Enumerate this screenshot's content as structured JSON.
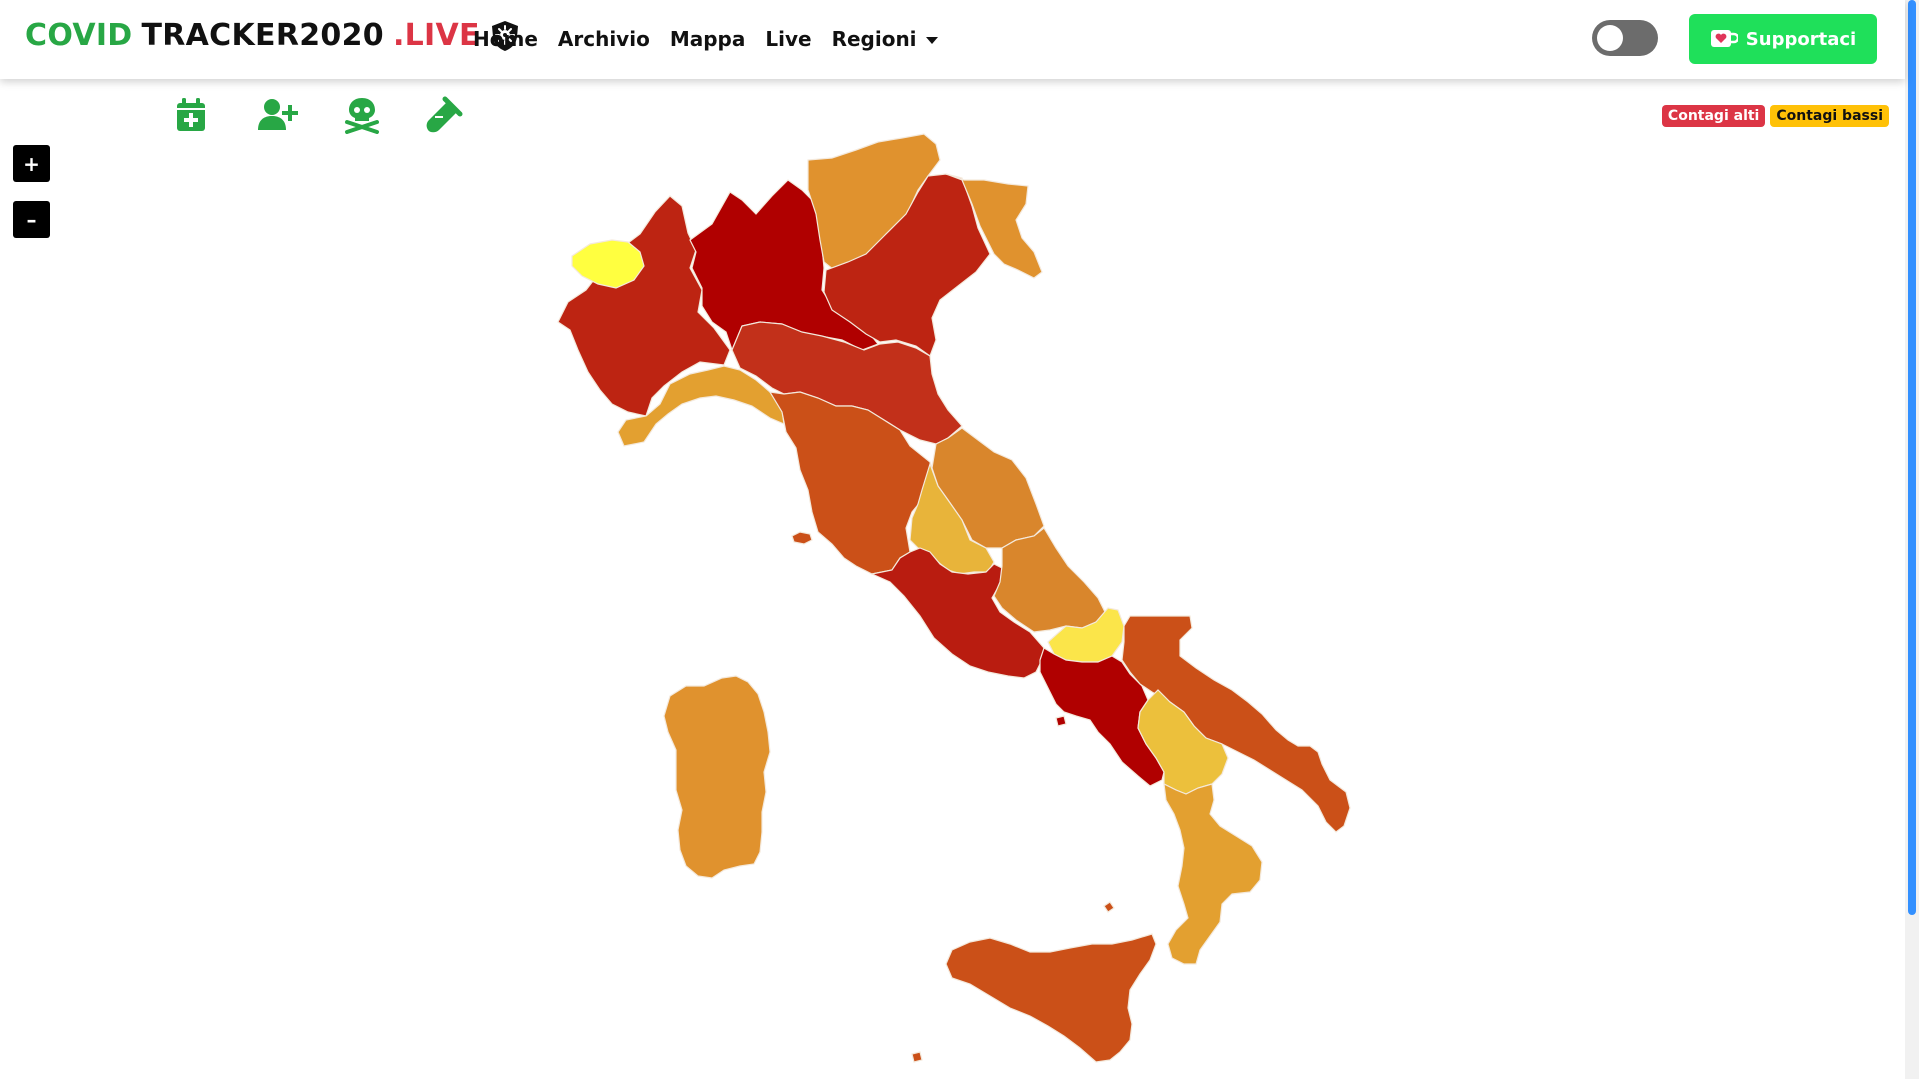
{
  "brand": {
    "part1": "COVID",
    "part2": "TRACKER2020",
    "part3": ".LIVE",
    "logo_icon": "shield-virus-icon"
  },
  "nav": {
    "items": [
      {
        "label": "Home"
      },
      {
        "label": "Archivio"
      },
      {
        "label": "Mappa"
      },
      {
        "label": "Live"
      },
      {
        "label": "Regioni",
        "dropdown": true
      }
    ]
  },
  "theme_toggle": {
    "state": "off"
  },
  "support_button": {
    "label": "Supportaci",
    "icon": "ko-fi-cup-icon",
    "color": "#1fe05a"
  },
  "toolbar": {
    "icons": [
      "calendar-plus-icon",
      "user-plus-icon",
      "skull-crossbones-icon",
      "test-tube-icon"
    ],
    "color": "#28a745"
  },
  "zoom": {
    "in_label": "+",
    "out_label": "–"
  },
  "legend": {
    "high_label": "Contagi alti",
    "high_color": "#dc3545",
    "low_label": "Contagi bassi",
    "low_color": "#ffc107"
  },
  "map": {
    "title": "",
    "regions": [
      {
        "name": "Valle d'Aosta",
        "fill": "#ffff40"
      },
      {
        "name": "Piemonte",
        "fill": "#bd2412"
      },
      {
        "name": "Lombardia",
        "fill": "#b00000"
      },
      {
        "name": "Trentino-Alto Adige",
        "fill": "#e0922e"
      },
      {
        "name": "Veneto",
        "fill": "#bd2412"
      },
      {
        "name": "Friuli-Venezia Giulia",
        "fill": "#e0922e"
      },
      {
        "name": "Liguria",
        "fill": "#e3a030"
      },
      {
        "name": "Emilia-Romagna",
        "fill": "#c2301a"
      },
      {
        "name": "Toscana",
        "fill": "#cb5018"
      },
      {
        "name": "Marche",
        "fill": "#d9862c"
      },
      {
        "name": "Umbria",
        "fill": "#e8b43a"
      },
      {
        "name": "Lazio",
        "fill": "#b91c10"
      },
      {
        "name": "Abruzzo",
        "fill": "#d9862c"
      },
      {
        "name": "Molise",
        "fill": "#fbe54a"
      },
      {
        "name": "Campania",
        "fill": "#b00000"
      },
      {
        "name": "Puglia",
        "fill": "#cb5018"
      },
      {
        "name": "Basilicata",
        "fill": "#ecc03c"
      },
      {
        "name": "Calabria",
        "fill": "#e3a030"
      },
      {
        "name": "Sicilia",
        "fill": "#cb5018"
      },
      {
        "name": "Sardegna",
        "fill": "#e0922e"
      }
    ]
  }
}
